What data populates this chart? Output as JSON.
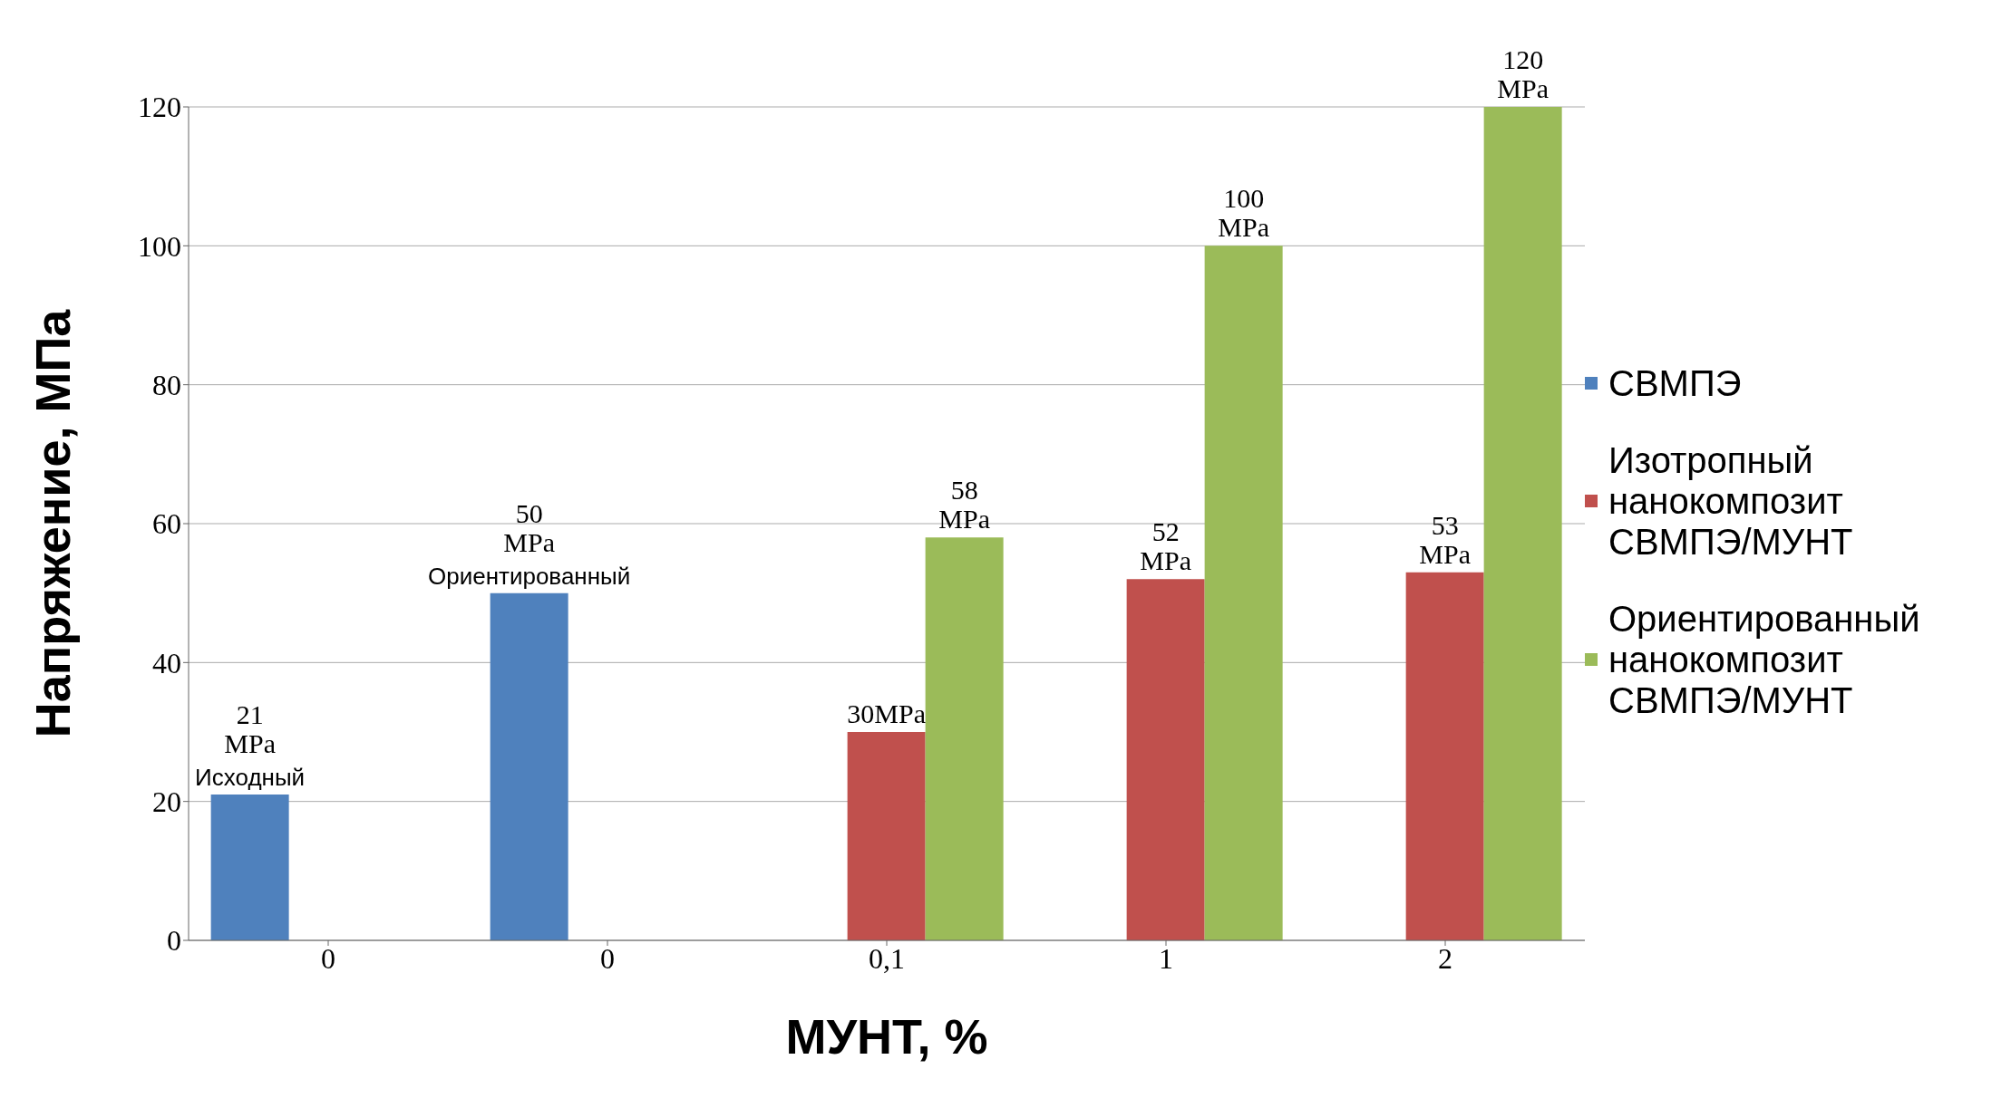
{
  "chart_data": {
    "type": "bar",
    "xlabel": "МУНТ, %",
    "ylabel": "Напряжение, МПа",
    "categories": [
      "0",
      "0",
      "0,1",
      "1",
      "2"
    ],
    "series": [
      {
        "name": "СВМПЭ",
        "color": "#4f81bd",
        "values": [
          21,
          50,
          null,
          null,
          null
        ],
        "value_labels": [
          "21 MPa",
          "50 MPa",
          null,
          null,
          null
        ]
      },
      {
        "name": "Изотропный нанокомпозит СВМПЭ/МУНТ",
        "color": "#c0504d",
        "values": [
          null,
          null,
          30,
          52,
          53
        ],
        "value_labels": [
          null,
          null,
          "30MPa",
          "52 MPa",
          "53 MPa"
        ]
      },
      {
        "name": "Ориентированный нанокомпозит СВМПЭ/МУНТ",
        "color": "#9bbb59",
        "values": [
          null,
          null,
          58,
          100,
          120
        ],
        "value_labels": [
          null,
          null,
          "58 MPa",
          "100 MPa",
          "120 MPa"
        ]
      }
    ],
    "annotations": [
      "Исходный",
      "Ориентированный"
    ],
    "ylim": [
      0,
      120
    ],
    "yticks": [
      0,
      20,
      40,
      60,
      80,
      100,
      120
    ],
    "grid": "y",
    "legend": "right"
  }
}
